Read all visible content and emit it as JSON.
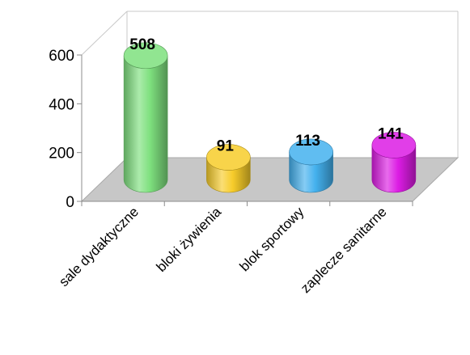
{
  "chart_data": {
    "type": "bar",
    "style": "3d-cylinder",
    "categories": [
      "sale dydaktyczne",
      "bloki żywienia",
      "blok sportowy",
      "zaplecze sanitarne"
    ],
    "values": [
      508,
      91,
      113,
      141
    ],
    "data_labels": [
      "508",
      "91",
      "113",
      "141"
    ],
    "colors": [
      "#7ee07e",
      "#f7cc2a",
      "#44b1ee",
      "#dc1ce4"
    ],
    "yticks": [
      0,
      200,
      400,
      600
    ],
    "ylim": [
      0,
      600
    ],
    "grid": false,
    "legend": "none",
    "floor_color": "#c7c7c7"
  }
}
